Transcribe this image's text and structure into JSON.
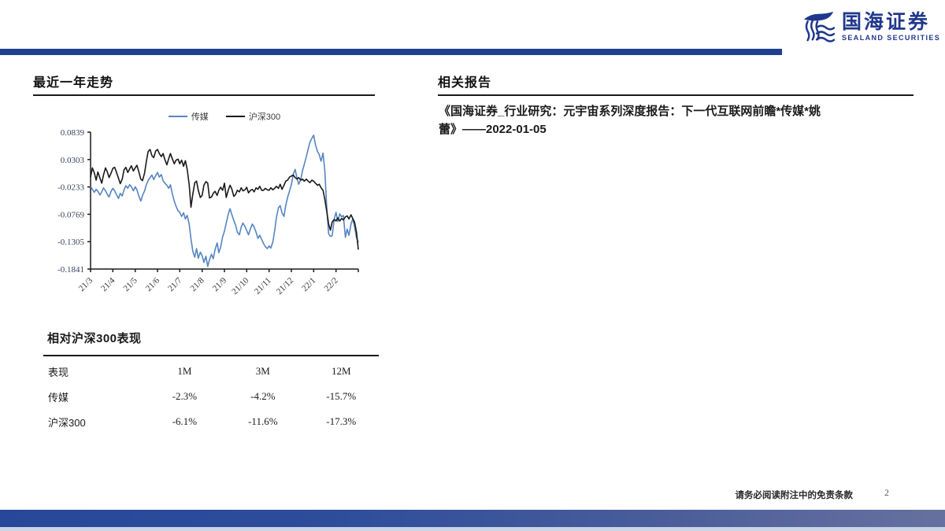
{
  "brand": {
    "name_cn": "国海证券",
    "name_en": "SEALAND SECURITIES",
    "color": "#20388c"
  },
  "left": {
    "section_title": "最近一年走势",
    "table": {
      "title": "相对沪深300表现",
      "columns": [
        "表现",
        "1M",
        "3M",
        "12M"
      ],
      "rows": [
        {
          "label": "传媒",
          "values": [
            "-2.3%",
            "-4.2%",
            "-15.7%"
          ]
        },
        {
          "label": "沪深300",
          "values": [
            "-6.1%",
            "-11.6%",
            "-17.3%"
          ]
        }
      ]
    }
  },
  "right": {
    "section_title": "相关报告",
    "report": "《国海证券_行业研究：元宇宙系列深度报告：下一代互联网前瞻*传媒*姚蕾》——2022-01-05"
  },
  "footer": {
    "disclaimer": "请务必阅读附注中的免责条款",
    "page_number": "2"
  },
  "chart_data": {
    "type": "line",
    "title": "最近一年走势",
    "grid": false,
    "legend_position": "top",
    "axis_color": "#1a1a1a",
    "tick_label_color": "#39425c",
    "x_range": [
      0,
      12
    ],
    "ylim": [
      -0.1841,
      0.0839
    ],
    "y_ticks": [
      0.0839,
      0.0303,
      -0.0233,
      -0.0769,
      -0.1305,
      -0.1841
    ],
    "y_tick_labels": [
      "0.0839",
      "0.0303",
      "-0.0233",
      "-0.0769",
      "-0.1305",
      "-0.1841"
    ],
    "x_tick_labels": [
      "21/3",
      "21/4",
      "21/5",
      "21/6",
      "21/7",
      "21/8",
      "21/9",
      "21/10",
      "21/11",
      "21/12",
      "22/1",
      "22/2"
    ],
    "series": [
      {
        "name": "传媒",
        "color": "#5585c2",
        "points": [
          [
            0,
            -0.022
          ],
          [
            0.08,
            -0.028
          ],
          [
            0.17,
            -0.034
          ],
          [
            0.25,
            -0.028
          ],
          [
            0.33,
            -0.032
          ],
          [
            0.42,
            -0.039
          ],
          [
            0.5,
            -0.033
          ],
          [
            0.58,
            -0.025
          ],
          [
            0.67,
            -0.031
          ],
          [
            0.75,
            -0.038
          ],
          [
            0.83,
            -0.043
          ],
          [
            0.92,
            -0.032
          ],
          [
            1,
            -0.026
          ],
          [
            1.08,
            -0.031
          ],
          [
            1.17,
            -0.039
          ],
          [
            1.25,
            -0.046
          ],
          [
            1.33,
            -0.036
          ],
          [
            1.42,
            -0.041
          ],
          [
            1.5,
            -0.029
          ],
          [
            1.58,
            -0.021
          ],
          [
            1.67,
            -0.026
          ],
          [
            1.75,
            -0.019
          ],
          [
            1.83,
            -0.023
          ],
          [
            1.92,
            -0.031
          ],
          [
            2,
            -0.023
          ],
          [
            2.08,
            -0.029
          ],
          [
            2.17,
            -0.042
          ],
          [
            2.25,
            -0.051
          ],
          [
            2.33,
            -0.04
          ],
          [
            2.42,
            -0.031
          ],
          [
            2.5,
            -0.019
          ],
          [
            2.58,
            -0.011
          ],
          [
            2.67,
            -0.005
          ],
          [
            2.75,
            0
          ],
          [
            2.83,
            -0.009
          ],
          [
            2.92,
            -0.001
          ],
          [
            3,
            0.005
          ],
          [
            3.08,
            -0.004
          ],
          [
            3.17,
            0.001
          ],
          [
            3.25,
            -0.011
          ],
          [
            3.33,
            -0.016
          ],
          [
            3.42,
            -0.02
          ],
          [
            3.5,
            -0.026
          ],
          [
            3.58,
            -0.019
          ],
          [
            3.67,
            -0.038
          ],
          [
            3.75,
            -0.051
          ],
          [
            3.83,
            -0.061
          ],
          [
            3.92,
            -0.07
          ],
          [
            4,
            -0.073
          ],
          [
            4.08,
            -0.081
          ],
          [
            4.17,
            -0.074
          ],
          [
            4.25,
            -0.086
          ],
          [
            4.33,
            -0.079
          ],
          [
            4.42,
            -0.096
          ],
          [
            4.5,
            -0.125
          ],
          [
            4.58,
            -0.149
          ],
          [
            4.67,
            -0.161
          ],
          [
            4.75,
            -0.144
          ],
          [
            4.83,
            -0.163
          ],
          [
            4.92,
            -0.151
          ],
          [
            5,
            -0.158
          ],
          [
            5.08,
            -0.171
          ],
          [
            5.17,
            -0.159
          ],
          [
            5.25,
            -0.179
          ],
          [
            5.33,
            -0.166
          ],
          [
            5.42,
            -0.155
          ],
          [
            5.5,
            -0.164
          ],
          [
            5.58,
            -0.146
          ],
          [
            5.67,
            -0.133
          ],
          [
            5.75,
            -0.152
          ],
          [
            5.83,
            -0.141
          ],
          [
            5.92,
            -0.121
          ],
          [
            6,
            -0.11
          ],
          [
            6.08,
            -0.094
          ],
          [
            6.17,
            -0.077
          ],
          [
            6.25,
            -0.066
          ],
          [
            6.33,
            -0.077
          ],
          [
            6.42,
            -0.089
          ],
          [
            6.5,
            -0.098
          ],
          [
            6.58,
            -0.112
          ],
          [
            6.67,
            -0.117
          ],
          [
            6.75,
            -0.102
          ],
          [
            6.83,
            -0.094
          ],
          [
            6.92,
            -0.101
          ],
          [
            7,
            -0.109
          ],
          [
            7.08,
            -0.117
          ],
          [
            7.17,
            -0.105
          ],
          [
            7.25,
            -0.096
          ],
          [
            7.33,
            -0.102
          ],
          [
            7.42,
            -0.112
          ],
          [
            7.5,
            -0.124
          ],
          [
            7.58,
            -0.118
          ],
          [
            7.67,
            -0.126
          ],
          [
            7.75,
            -0.134
          ],
          [
            7.83,
            -0.14
          ],
          [
            7.92,
            -0.144
          ],
          [
            8,
            -0.139
          ],
          [
            8.08,
            -0.143
          ],
          [
            8.17,
            -0.131
          ],
          [
            8.25,
            -0.109
          ],
          [
            8.33,
            -0.083
          ],
          [
            8.42,
            -0.064
          ],
          [
            8.5,
            -0.06
          ],
          [
            8.58,
            -0.074
          ],
          [
            8.67,
            -0.081
          ],
          [
            8.75,
            -0.059
          ],
          [
            8.83,
            -0.044
          ],
          [
            8.92,
            -0.031
          ],
          [
            9,
            -0.019
          ],
          [
            9.08,
            0.001
          ],
          [
            9.17,
            0.011
          ],
          [
            9.25,
            -0.006
          ],
          [
            9.33,
            -0.018
          ],
          [
            9.42,
            -0.009
          ],
          [
            9.5,
            0.009
          ],
          [
            9.58,
            0.021
          ],
          [
            9.67,
            0.036
          ],
          [
            9.75,
            0.051
          ],
          [
            9.83,
            0.064
          ],
          [
            9.92,
            0.072
          ],
          [
            10,
            0.078
          ],
          [
            10.08,
            0.059
          ],
          [
            10.17,
            0.046
          ],
          [
            10.25,
            0.04
          ],
          [
            10.33,
            0.027
          ],
          [
            10.42,
            0.043
          ],
          [
            10.5,
            0.008
          ],
          [
            10.58,
            -0.061
          ],
          [
            10.67,
            -0.115
          ],
          [
            10.75,
            -0.12
          ],
          [
            10.83,
            -0.119
          ],
          [
            10.92,
            -0.086
          ],
          [
            11,
            -0.073
          ],
          [
            11.08,
            -0.091
          ],
          [
            11.17,
            -0.076
          ],
          [
            11.25,
            -0.082
          ],
          [
            11.33,
            -0.079
          ],
          [
            11.42,
            -0.122
          ],
          [
            11.5,
            -0.106
          ],
          [
            11.58,
            -0.118
          ],
          [
            11.67,
            -0.096
          ],
          [
            11.75,
            -0.086
          ],
          [
            11.83,
            -0.101
          ],
          [
            11.92,
            -0.123
          ],
          [
            12,
            -0.132
          ]
        ]
      },
      {
        "name": "沪深300",
        "color": "#1a1a1a",
        "points": [
          [
            0,
            -0.004
          ],
          [
            0.08,
            0.014
          ],
          [
            0.17,
            0.004
          ],
          [
            0.25,
            -0.01
          ],
          [
            0.33,
            0.006
          ],
          [
            0.42,
            -0.006
          ],
          [
            0.5,
            -0.016
          ],
          [
            0.58,
            0
          ],
          [
            0.67,
            0.014
          ],
          [
            0.75,
            0.006
          ],
          [
            0.83,
            -0.005
          ],
          [
            0.92,
            0.004
          ],
          [
            1,
            0.013
          ],
          [
            1.08,
            0.015
          ],
          [
            1.17,
            0.004
          ],
          [
            1.25,
            -0.006
          ],
          [
            1.33,
            -0.017
          ],
          [
            1.42,
            -0.008
          ],
          [
            1.5,
            0.01
          ],
          [
            1.58,
            0.015
          ],
          [
            1.67,
            0.005
          ],
          [
            1.75,
            0.012
          ],
          [
            1.83,
            0.018
          ],
          [
            1.92,
            0.008
          ],
          [
            2,
            0.014
          ],
          [
            2.08,
            0.019
          ],
          [
            2.17,
            0.005
          ],
          [
            2.25,
            -0.008
          ],
          [
            2.33,
            -0.011
          ],
          [
            2.42,
            0.004
          ],
          [
            2.5,
            0.026
          ],
          [
            2.58,
            0.046
          ],
          [
            2.67,
            0.05
          ],
          [
            2.75,
            0.038
          ],
          [
            2.83,
            0.034
          ],
          [
            2.92,
            0.047
          ],
          [
            3,
            0.05
          ],
          [
            3.08,
            0.042
          ],
          [
            3.17,
            0.036
          ],
          [
            3.25,
            0.042
          ],
          [
            3.33,
            0.03
          ],
          [
            3.42,
            0.02
          ],
          [
            3.5,
            0.032
          ],
          [
            3.58,
            0.042
          ],
          [
            3.67,
            0.031
          ],
          [
            3.75,
            0.022
          ],
          [
            3.83,
            0.029
          ],
          [
            3.92,
            0.031
          ],
          [
            4,
            0.022
          ],
          [
            4.08,
            0.029
          ],
          [
            4.17,
            0.017
          ],
          [
            4.25,
            0.028
          ],
          [
            4.33,
            0.011
          ],
          [
            4.42,
            -0.018
          ],
          [
            4.5,
            -0.063
          ],
          [
            4.58,
            -0.038
          ],
          [
            4.67,
            -0.015
          ],
          [
            4.75,
            -0.012
          ],
          [
            4.83,
            -0.03
          ],
          [
            4.92,
            -0.044
          ],
          [
            5,
            -0.04
          ],
          [
            5.08,
            -0.02
          ],
          [
            5.17,
            -0.013
          ],
          [
            5.25,
            -0.016
          ],
          [
            5.33,
            -0.045
          ],
          [
            5.42,
            -0.043
          ],
          [
            5.5,
            -0.036
          ],
          [
            5.58,
            -0.032
          ],
          [
            5.67,
            -0.04
          ],
          [
            5.75,
            -0.03
          ],
          [
            5.83,
            -0.024
          ],
          [
            5.92,
            -0.03
          ],
          [
            6,
            -0.016
          ],
          [
            6.08,
            -0.044
          ],
          [
            6.17,
            -0.03
          ],
          [
            6.25,
            -0.02
          ],
          [
            6.33,
            -0.027
          ],
          [
            6.42,
            -0.042
          ],
          [
            6.5,
            -0.038
          ],
          [
            6.58,
            -0.03
          ],
          [
            6.67,
            -0.033
          ],
          [
            6.75,
            -0.025
          ],
          [
            6.83,
            -0.031
          ],
          [
            6.92,
            -0.029
          ],
          [
            7,
            -0.024
          ],
          [
            7.08,
            -0.035
          ],
          [
            7.17,
            -0.03
          ],
          [
            7.25,
            -0.028
          ],
          [
            7.33,
            -0.033
          ],
          [
            7.42,
            -0.025
          ],
          [
            7.5,
            -0.028
          ],
          [
            7.58,
            -0.022
          ],
          [
            7.67,
            -0.03
          ],
          [
            7.75,
            -0.03
          ],
          [
            7.83,
            -0.026
          ],
          [
            7.92,
            -0.029
          ],
          [
            8,
            -0.03
          ],
          [
            8.08,
            -0.025
          ],
          [
            8.17,
            -0.029
          ],
          [
            8.25,
            -0.026
          ],
          [
            8.33,
            -0.022
          ],
          [
            8.42,
            -0.026
          ],
          [
            8.5,
            -0.018
          ],
          [
            8.58,
            -0.028
          ],
          [
            8.67,
            -0.02
          ],
          [
            8.75,
            -0.012
          ],
          [
            8.83,
            -0.01
          ],
          [
            8.92,
            -0.004
          ],
          [
            9,
            -0.002
          ],
          [
            9.08,
            0
          ],
          [
            9.17,
            -0.005
          ],
          [
            9.25,
            -0.008
          ],
          [
            9.33,
            -0.005
          ],
          [
            9.42,
            -0.01
          ],
          [
            9.5,
            -0.008
          ],
          [
            9.58,
            -0.012
          ],
          [
            9.67,
            -0.008
          ],
          [
            9.75,
            -0.012
          ],
          [
            9.83,
            -0.015
          ],
          [
            9.92,
            -0.01
          ],
          [
            10,
            -0.012
          ],
          [
            10.08,
            -0.016
          ],
          [
            10.17,
            -0.02
          ],
          [
            10.25,
            -0.018
          ],
          [
            10.33,
            -0.025
          ],
          [
            10.42,
            -0.03
          ],
          [
            10.5,
            -0.048
          ],
          [
            10.58,
            -0.07
          ],
          [
            10.67,
            -0.096
          ],
          [
            10.75,
            -0.108
          ],
          [
            10.83,
            -0.092
          ],
          [
            10.92,
            -0.087
          ],
          [
            11,
            -0.09
          ],
          [
            11.08,
            -0.084
          ],
          [
            11.17,
            -0.09
          ],
          [
            11.25,
            -0.085
          ],
          [
            11.33,
            -0.088
          ],
          [
            11.42,
            -0.082
          ],
          [
            11.5,
            -0.08
          ],
          [
            11.58,
            -0.086
          ],
          [
            11.67,
            -0.078
          ],
          [
            11.75,
            -0.085
          ],
          [
            11.83,
            -0.092
          ],
          [
            11.92,
            -0.112
          ],
          [
            12,
            -0.146
          ]
        ]
      }
    ]
  }
}
